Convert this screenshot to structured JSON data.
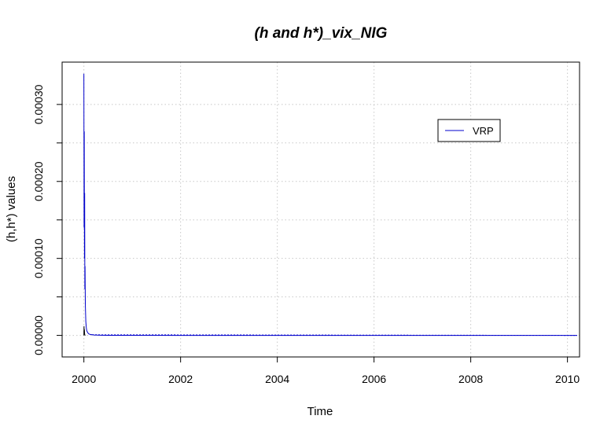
{
  "chart_data": {
    "type": "line",
    "title": "(h and h*)_vix_NIG",
    "xlabel": "Time",
    "ylabel": "(h,h*) values",
    "xlim": [
      1999.55,
      2010.25
    ],
    "ylim": [
      -2.8e-05,
      0.000355
    ],
    "x_ticks": [
      2000,
      2002,
      2004,
      2006,
      2008,
      2010
    ],
    "x_tick_labels": [
      "2000",
      "2002",
      "2004",
      "2006",
      "2008",
      "2010"
    ],
    "y_ticks": [
      0,
      0.0001,
      0.0002,
      0.0003
    ],
    "y_tick_labels": [
      "0.00000",
      "0.00010",
      "0.00020",
      "0.00030"
    ],
    "y_minor_ticks": [
      5e-05,
      0.00015,
      0.00025
    ],
    "grid": true,
    "legend": {
      "position": "top-right",
      "entries": [
        "VRP"
      ]
    },
    "series": [
      {
        "name": "VRP",
        "color": "#0000cc",
        "x": [
          2000.0,
          2000.004,
          2000.008,
          2000.012,
          2000.016,
          2000.02,
          2000.024,
          2000.03,
          2000.04,
          2000.05,
          2000.06,
          2000.08,
          2000.1,
          2000.13,
          2000.17,
          2000.22,
          2000.3,
          2000.5,
          2001,
          2002,
          2004,
          2006,
          2008,
          2010.2
        ],
        "y": [
          0.00034,
          0.00014,
          0.000265,
          0.0001,
          0.000185,
          6e-05,
          9e-05,
          4e-05,
          1.8e-05,
          1e-05,
          6e-06,
          3.5e-06,
          2e-06,
          1.2e-06,
          8e-07,
          5e-07,
          3e-07,
          1e-07,
          3e-08,
          1e-08,
          5e-09,
          3e-09,
          2e-09,
          1e-09
        ]
      },
      {
        "name": "",
        "color": "#000000",
        "x": [
          2000.0,
          2000.003,
          2000.006,
          2000.01,
          2000.015,
          2000.02,
          2000.03
        ],
        "y": [
          0.0,
          1.2e-05,
          4e-06,
          8e-06,
          2e-06,
          5e-07,
          0.0
        ]
      }
    ]
  }
}
